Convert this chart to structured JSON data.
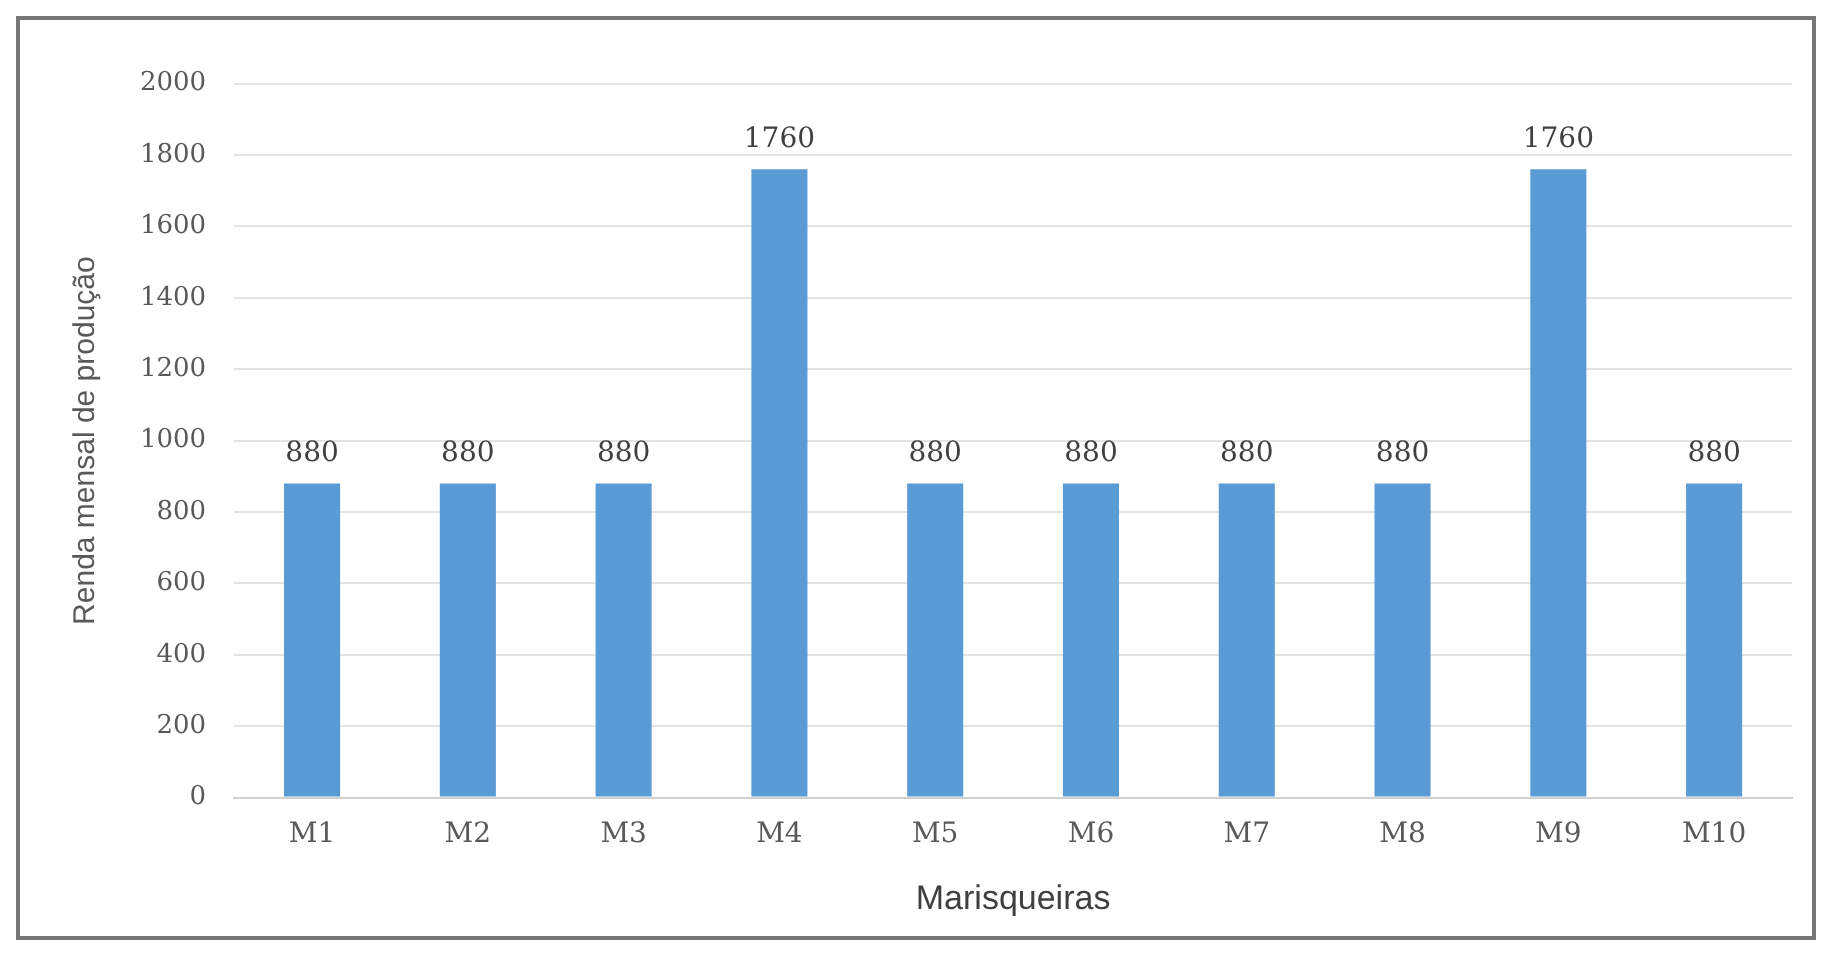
{
  "chart_data": {
    "type": "bar",
    "xlabel": "Marisqueiras",
    "ylabel": "Renda mensal de produção",
    "categories": [
      "M1",
      "M2",
      "M3",
      "M4",
      "M5",
      "M6",
      "M7",
      "M8",
      "M9",
      "M10"
    ],
    "values": [
      880,
      880,
      880,
      1760,
      880,
      880,
      880,
      880,
      1760,
      880
    ],
    "color": "#5b9bd5",
    "ylim": [
      0,
      2000
    ],
    "yticks": [
      0,
      200,
      400,
      600,
      800,
      1000,
      1200,
      1400,
      1600,
      1800,
      2000
    ],
    "grid": "y",
    "legend": false,
    "data_labels": true
  }
}
